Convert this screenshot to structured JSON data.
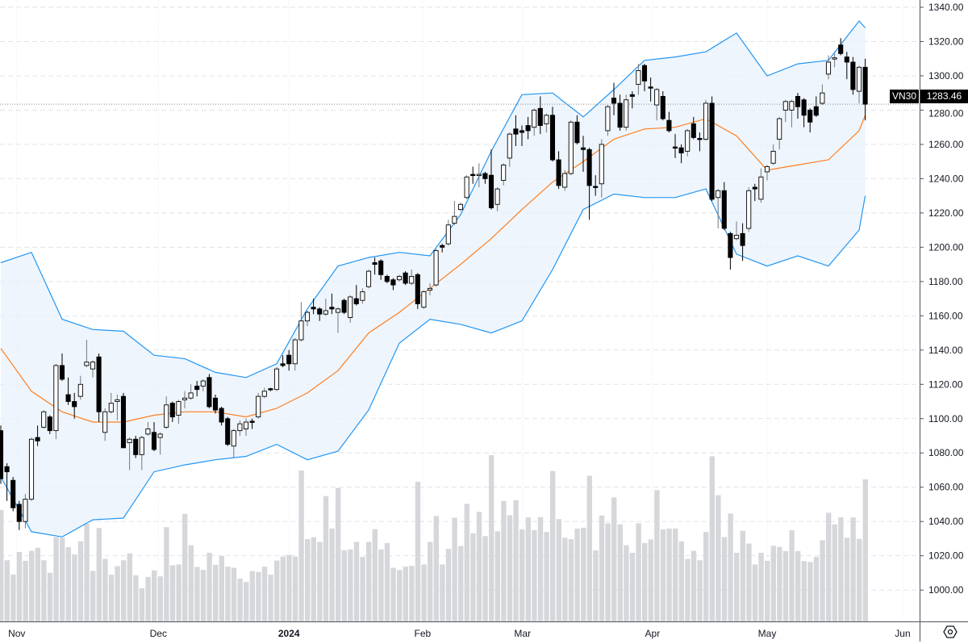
{
  "chart_data": {
    "type": "candlestick",
    "symbol": "VN30",
    "last_price": "1283.46",
    "last_price_value": 1283.46,
    "ylim": [
      985,
      1345
    ],
    "y_ticks": [
      "1000.00",
      "1020.00",
      "1040.00",
      "1060.00",
      "1080.00",
      "1100.00",
      "1120.00",
      "1140.00",
      "1160.00",
      "1180.00",
      "1200.00",
      "1220.00",
      "1240.00",
      "1260.00",
      "1280.00",
      "1300.00",
      "1320.00",
      "1340.00"
    ],
    "x_ticks": [
      {
        "label": "Nov",
        "index": 2.6
      },
      {
        "label": "Dec",
        "index": 25.7
      },
      {
        "label": "2024",
        "index": 47
      },
      {
        "label": "Feb",
        "index": 68.8
      },
      {
        "label": "Mar",
        "index": 85.1
      },
      {
        "label": "Apr",
        "index": 106.3
      },
      {
        "label": "May",
        "index": 125
      },
      {
        "label": "Jun",
        "index": 147.1
      }
    ],
    "grid": true,
    "ohlc_format": [
      "open",
      "high",
      "low",
      "close"
    ],
    "candles": [
      [
        1093,
        1096,
        1062,
        1065
      ],
      [
        1072,
        1074,
        1052,
        1069
      ],
      [
        1064,
        1066,
        1046,
        1048
      ],
      [
        1050,
        1052,
        1035,
        1040
      ],
      [
        1040,
        1056,
        1036,
        1053
      ],
      [
        1053,
        1089,
        1052,
        1088
      ],
      [
        1089,
        1096,
        1084,
        1087
      ],
      [
        1095,
        1105,
        1094,
        1104
      ],
      [
        1101,
        1102,
        1091,
        1093
      ],
      [
        1093,
        1132,
        1088,
        1131
      ],
      [
        1131,
        1138,
        1122,
        1123
      ],
      [
        1114,
        1124,
        1108,
        1110
      ],
      [
        1110,
        1115,
        1100,
        1107
      ],
      [
        1113,
        1125,
        1111,
        1120
      ],
      [
        1131,
        1146,
        1130,
        1133
      ],
      [
        1129,
        1134,
        1124,
        1133
      ],
      [
        1136,
        1138,
        1098,
        1104
      ],
      [
        1092,
        1106,
        1087,
        1104
      ],
      [
        1104,
        1115,
        1103,
        1109
      ],
      [
        1110,
        1114,
        1099,
        1111
      ],
      [
        1113,
        1115,
        1083,
        1083
      ],
      [
        1086,
        1089,
        1070,
        1088
      ],
      [
        1088,
        1090,
        1077,
        1079
      ],
      [
        1079,
        1090,
        1070,
        1089
      ],
      [
        1091,
        1098,
        1090,
        1094
      ],
      [
        1092,
        1098,
        1081,
        1082
      ],
      [
        1089,
        1092,
        1079,
        1091
      ],
      [
        1095,
        1113,
        1094,
        1108
      ],
      [
        1109,
        1110,
        1098,
        1101
      ],
      [
        1102,
        1111,
        1097,
        1110
      ],
      [
        1111,
        1116,
        1106,
        1112
      ],
      [
        1112,
        1120,
        1111,
        1115
      ],
      [
        1119,
        1122,
        1113,
        1117
      ],
      [
        1119,
        1123,
        1116,
        1122
      ],
      [
        1124,
        1126,
        1106,
        1107
      ],
      [
        1112,
        1114,
        1103,
        1105
      ],
      [
        1106,
        1107,
        1096,
        1098
      ],
      [
        1100,
        1101,
        1084,
        1085
      ],
      [
        1084,
        1094,
        1077,
        1093
      ],
      [
        1093,
        1099,
        1090,
        1097
      ],
      [
        1094,
        1100,
        1090,
        1098
      ],
      [
        1098.5,
        1100,
        1094,
        1098
      ],
      [
        1101,
        1115,
        1100,
        1113
      ],
      [
        1113,
        1118,
        1112,
        1116
      ],
      [
        1117.5,
        1118,
        1116,
        1117
      ],
      [
        1117,
        1130,
        1116,
        1129
      ],
      [
        1132,
        1137,
        1130,
        1131
      ],
      [
        1137,
        1140,
        1128,
        1132
      ],
      [
        1132,
        1147,
        1128,
        1146
      ],
      [
        1146,
        1168,
        1145,
        1157
      ],
      [
        1157,
        1163,
        1154,
        1162
      ],
      [
        1165,
        1170,
        1161,
        1164
      ],
      [
        1164,
        1165,
        1157,
        1161
      ],
      [
        1161,
        1170,
        1160,
        1163
      ],
      [
        1165,
        1173,
        1161,
        1164
      ],
      [
        1162,
        1165,
        1150,
        1164
      ],
      [
        1169,
        1170,
        1161,
        1162
      ],
      [
        1159,
        1172,
        1156,
        1171
      ],
      [
        1170,
        1178,
        1166,
        1167
      ],
      [
        1169,
        1176,
        1167,
        1174
      ],
      [
        1177,
        1187,
        1176,
        1186
      ],
      [
        1191,
        1194,
        1184,
        1190
      ],
      [
        1192,
        1193,
        1181,
        1184
      ],
      [
        1183,
        1184,
        1179,
        1180
      ],
      [
        1181,
        1182,
        1175,
        1178
      ],
      [
        1181,
        1184,
        1180,
        1183
      ],
      [
        1185,
        1186,
        1178,
        1179
      ],
      [
        1179,
        1187,
        1178,
        1183
      ],
      [
        1184,
        1185,
        1164,
        1167
      ],
      [
        1165,
        1175,
        1164,
        1174
      ],
      [
        1175,
        1179,
        1172,
        1176
      ],
      [
        1178,
        1199,
        1177,
        1198
      ],
      [
        1201,
        1202,
        1197,
        1200
      ],
      [
        1202,
        1216,
        1201,
        1213
      ],
      [
        1214,
        1227,
        1213,
        1218
      ],
      [
        1222,
        1226,
        1221,
        1225
      ],
      [
        1229,
        1242,
        1228,
        1241
      ],
      [
        1242.5,
        1247,
        1237,
        1242
      ],
      [
        1242,
        1249,
        1235,
        1242.5
      ],
      [
        1243,
        1244,
        1237,
        1240
      ],
      [
        1242,
        1257,
        1222,
        1223
      ],
      [
        1225,
        1235,
        1221,
        1234
      ],
      [
        1239,
        1249,
        1236,
        1248
      ],
      [
        1252,
        1267,
        1247,
        1266
      ],
      [
        1269,
        1277,
        1259,
        1266
      ],
      [
        1268,
        1271,
        1259,
        1267
      ],
      [
        1271,
        1276,
        1263,
        1268
      ],
      [
        1270,
        1281,
        1265,
        1280
      ],
      [
        1281,
        1288,
        1266,
        1271
      ],
      [
        1272,
        1278,
        1267,
        1277
      ],
      [
        1277,
        1282,
        1250,
        1251
      ],
      [
        1251,
        1256,
        1234,
        1236
      ],
      [
        1235,
        1245,
        1233,
        1243
      ],
      [
        1243,
        1274,
        1242,
        1273
      ],
      [
        1273,
        1277,
        1260,
        1261
      ],
      [
        1258,
        1265,
        1244,
        1257
      ],
      [
        1257,
        1258,
        1216,
        1236
      ],
      [
        1235.5,
        1242,
        1230,
        1235
      ],
      [
        1237,
        1263,
        1229,
        1260
      ],
      [
        1268,
        1283,
        1265,
        1282
      ],
      [
        1287,
        1296,
        1277,
        1284
      ],
      [
        1284,
        1289,
        1268,
        1270
      ],
      [
        1270,
        1289,
        1268,
        1286
      ],
      [
        1289,
        1291,
        1281,
        1288
      ],
      [
        1295,
        1307,
        1289,
        1303
      ],
      [
        1306,
        1307,
        1291,
        1297
      ],
      [
        1293.5,
        1299,
        1285,
        1293
      ],
      [
        1283,
        1293,
        1274,
        1292
      ],
      [
        1288,
        1291,
        1274,
        1275
      ],
      [
        1274,
        1279,
        1267,
        1268
      ],
      [
        1258.5,
        1266,
        1252,
        1258
      ],
      [
        1258,
        1260,
        1249,
        1255
      ],
      [
        1256,
        1269,
        1253,
        1268
      ],
      [
        1272,
        1276,
        1263,
        1264
      ],
      [
        1263.5,
        1267,
        1256,
        1263
      ],
      [
        1263,
        1286,
        1262,
        1284
      ],
      [
        1284,
        1288,
        1227,
        1228
      ],
      [
        1229,
        1234,
        1211,
        1233
      ],
      [
        1233,
        1238,
        1210,
        1211
      ],
      [
        1208,
        1209,
        1187,
        1194
      ],
      [
        1205,
        1215,
        1204,
        1207
      ],
      [
        1208,
        1214,
        1192,
        1201
      ],
      [
        1211,
        1235,
        1209,
        1233
      ],
      [
        1235,
        1237,
        1227,
        1234
      ],
      [
        1228,
        1246,
        1226,
        1241
      ],
      [
        1244,
        1248,
        1239,
        1247
      ],
      [
        1249,
        1260,
        1248,
        1256
      ],
      [
        1263,
        1276,
        1257,
        1275
      ],
      [
        1280,
        1286,
        1273,
        1285
      ],
      [
        1280,
        1286,
        1270,
        1285
      ],
      [
        1288,
        1290,
        1275,
        1282
      ],
      [
        1286,
        1287,
        1270,
        1277
      ],
      [
        1280,
        1281,
        1267,
        1273
      ],
      [
        1282,
        1288,
        1276,
        1277
      ],
      [
        1284,
        1295,
        1283,
        1290
      ],
      [
        1301,
        1312,
        1298,
        1308
      ],
      [
        1310,
        1313,
        1305,
        1310.5
      ],
      [
        1318,
        1322,
        1312,
        1313
      ],
      [
        1311,
        1314,
        1298,
        1308
      ],
      [
        1308,
        1311,
        1289,
        1292
      ],
      [
        1291,
        1306,
        1284,
        1305
      ],
      [
        1305,
        1310,
        1274,
        1283.46
      ]
    ],
    "volume_relative": [
      401,
      220,
      169,
      250,
      218,
      254,
      265,
      220,
      175,
      303,
      301,
      267,
      241,
      288,
      351,
      182,
      336,
      225,
      168,
      199,
      220,
      245,
      166,
      119,
      160,
      184,
      162,
      339,
      202,
      205,
      387,
      274,
      196,
      185,
      247,
      204,
      235,
      197,
      193,
      154,
      142,
      181,
      178,
      197,
      168,
      219,
      233,
      239,
      233,
      543,
      296,
      303,
      286,
      451,
      334,
      480,
      256,
      259,
      286,
      232,
      286,
      332,
      259,
      282,
      193,
      185,
      197,
      200,
      502,
      205,
      286,
      379,
      205,
      261,
      373,
      271,
      423,
      317,
      394,
      307,
      598,
      324,
      433,
      382,
      436,
      331,
      374,
      328,
      375,
      322,
      541,
      368,
      301,
      296,
      334,
      337,
      524,
      256,
      381,
      353,
      446,
      349,
      274,
      247,
      353,
      282,
      295,
      472,
      331,
      334,
      334,
      288,
      225,
      254,
      220,
      322,
      594,
      454,
      303,
      388,
      247,
      326,
      280,
      205,
      247,
      218,
      272,
      268,
      253,
      328,
      253,
      217,
      214,
      232,
      292,
      391,
      349,
      374,
      301,
      374,
      297,
      511
    ],
    "bollinger": {
      "index": [
        0,
        5,
        10,
        15,
        20,
        25,
        30,
        35,
        40,
        45,
        50,
        55,
        60,
        65,
        70,
        75,
        80,
        85,
        90,
        95,
        100,
        105,
        110,
        115,
        120,
        125,
        130,
        135,
        140,
        141
      ],
      "upper": [
        1191,
        1197,
        1158,
        1152,
        1151,
        1137,
        1135,
        1127,
        1124,
        1132,
        1164,
        1189,
        1194,
        1197,
        1195,
        1219,
        1256,
        1289,
        1290,
        1276,
        1292,
        1309,
        1311,
        1314,
        1325,
        1300,
        1307,
        1309,
        1332,
        1328
      ],
      "middle": [
        1141,
        1116,
        1104,
        1098,
        1098,
        1102,
        1104,
        1104,
        1101,
        1106,
        1115,
        1128,
        1150,
        1162,
        1176,
        1190,
        1205,
        1222,
        1238,
        1250,
        1263,
        1269,
        1270,
        1275,
        1265,
        1245,
        1248,
        1251,
        1268,
        1277
      ],
      "lower": [
        1066,
        1034,
        1031,
        1041,
        1042,
        1069,
        1073,
        1076,
        1078,
        1085,
        1076,
        1081,
        1105,
        1144,
        1158,
        1155,
        1150,
        1157,
        1187,
        1222,
        1231,
        1229,
        1229,
        1234,
        1196,
        1189,
        1195,
        1189,
        1210,
        1230
      ]
    },
    "colors": {
      "up_body": "#ffffff",
      "down_body": "#000000",
      "band_line": "#2196f3",
      "band_fill": "#e8f2fc",
      "middle_line": "#ff7f1e",
      "volume": "#d6d7db"
    }
  }
}
